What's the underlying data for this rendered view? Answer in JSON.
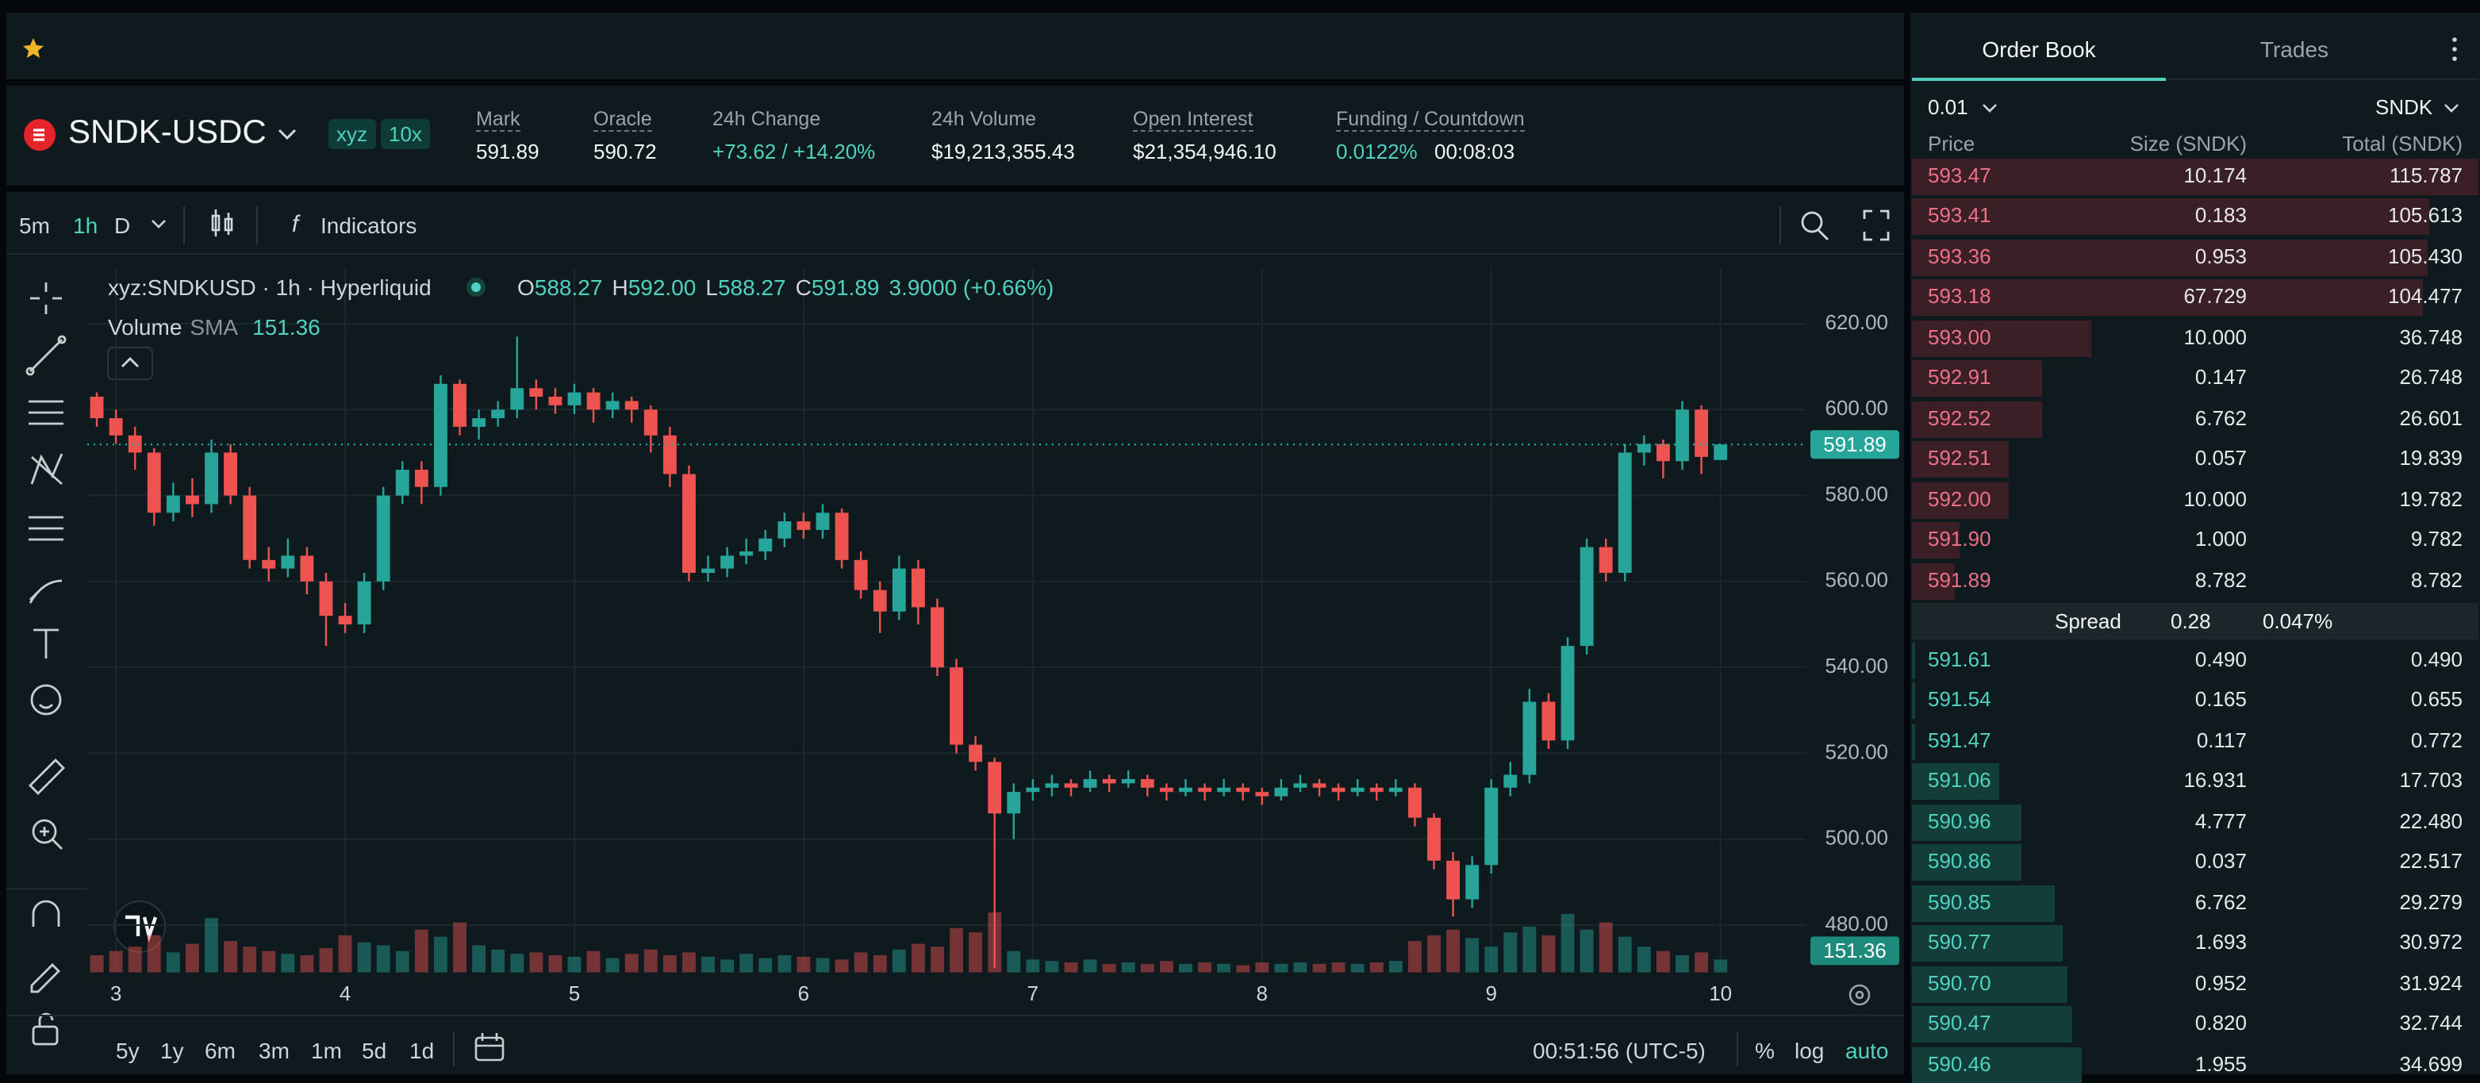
{
  "header": {
    "symbol": "SNDK-USDC",
    "badges": [
      "xyz",
      "10x"
    ],
    "stats": [
      {
        "label": "Mark",
        "value": "591.89"
      },
      {
        "label": "Oracle",
        "value": "590.72"
      },
      {
        "label": "24h Change",
        "value": "+73.62 / +14.20%"
      },
      {
        "label": "24h Volume",
        "value": "$19,213,355.43"
      },
      {
        "label": "Open Interest",
        "value": "$21,354,946.10"
      },
      {
        "label": "Funding / Countdown",
        "value": "0.0122%",
        "extra": "00:08:03"
      }
    ]
  },
  "toolbar": {
    "intervals": [
      "5m",
      "1h",
      "D"
    ],
    "indicators": "Indicators"
  },
  "range_bar": {
    "ranges": [
      "5y",
      "1y",
      "6m",
      "3m",
      "1m",
      "5d",
      "1d"
    ],
    "clock": "00:51:56 (UTC-5)",
    "options": [
      "%",
      "log",
      "auto"
    ]
  },
  "chart_data": {
    "type": "candlestick",
    "title": "xyz:SNDKUSD · 1h · Hyperliquid",
    "legend": [
      {
        "key": "O",
        "value": "588.27"
      },
      {
        "key": "H",
        "value": "592.00"
      },
      {
        "key": "L",
        "value": "588.27"
      },
      {
        "key": "C",
        "value": "591.89"
      }
    ],
    "change": "3.9000 (+0.66%)",
    "volume_label": "Volume",
    "volume_sma_label": "SMA",
    "volume_sma": 151.36,
    "last_price": 591.89,
    "up_color": "#26a69a",
    "down_color": "#ef5350",
    "grid": true,
    "xlim": [
      -3,
      177
    ],
    "xticks": [
      {
        "value": 0,
        "label": "3"
      },
      {
        "value": 24,
        "label": "4"
      },
      {
        "value": 48,
        "label": "5"
      },
      {
        "value": 72,
        "label": "6"
      },
      {
        "value": 96,
        "label": "7"
      },
      {
        "value": 120,
        "label": "8"
      },
      {
        "value": 144,
        "label": "9"
      },
      {
        "value": 168,
        "label": "10"
      }
    ],
    "ylim": [
      469,
      633
    ],
    "yticks": [
      {
        "value": 480,
        "label": "480.00"
      },
      {
        "value": 500,
        "label": "500.00"
      },
      {
        "value": 520,
        "label": "520.00"
      },
      {
        "value": 540,
        "label": "540.00"
      },
      {
        "value": 560,
        "label": "560.00"
      },
      {
        "value": 580,
        "label": "580.00"
      },
      {
        "value": 600,
        "label": "600.00"
      },
      {
        "value": 620,
        "label": "620.00"
      }
    ],
    "vlim": [
      0,
      1000
    ],
    "x": [
      -2,
      0,
      2,
      4,
      6,
      8,
      10,
      12,
      14,
      16,
      18,
      20,
      22,
      24,
      26,
      28,
      30,
      32,
      34,
      36,
      38,
      40,
      42,
      44,
      46,
      48,
      50,
      52,
      54,
      56,
      58,
      60,
      62,
      64,
      66,
      68,
      70,
      72,
      74,
      76,
      78,
      80,
      82,
      84,
      86,
      88,
      90,
      92,
      94,
      96,
      98,
      100,
      102,
      104,
      106,
      108,
      110,
      112,
      114,
      116,
      118,
      120,
      122,
      124,
      126,
      128,
      130,
      132,
      134,
      136,
      138,
      140,
      142,
      144,
      146,
      148,
      150,
      152,
      154,
      156,
      158,
      160,
      162,
      164,
      166,
      168
    ],
    "candles": [
      [
        603,
        604,
        596,
        598
      ],
      [
        598,
        600,
        592,
        594
      ],
      [
        594,
        596,
        586,
        590
      ],
      [
        590,
        591,
        573,
        576
      ],
      [
        576,
        583,
        574,
        580
      ],
      [
        580,
        584,
        575,
        578
      ],
      [
        578,
        593,
        576,
        590
      ],
      [
        590,
        592,
        578,
        580
      ],
      [
        580,
        582,
        563,
        565
      ],
      [
        565,
        568,
        560,
        563
      ],
      [
        563,
        570,
        561,
        566
      ],
      [
        566,
        568,
        557,
        560
      ],
      [
        560,
        562,
        545,
        552
      ],
      [
        552,
        555,
        548,
        550
      ],
      [
        550,
        562,
        548,
        560
      ],
      [
        560,
        582,
        558,
        580
      ],
      [
        580,
        588,
        578,
        586
      ],
      [
        586,
        588,
        578,
        582
      ],
      [
        582,
        608,
        580,
        606
      ],
      [
        606,
        607,
        594,
        596
      ],
      [
        596,
        600,
        593,
        598
      ],
      [
        598,
        602,
        596,
        600
      ],
      [
        600,
        617,
        598,
        605
      ],
      [
        605,
        607,
        600,
        603
      ],
      [
        603,
        605,
        599,
        601
      ],
      [
        601,
        606,
        599,
        604
      ],
      [
        604,
        605,
        597,
        600
      ],
      [
        600,
        604,
        598,
        602
      ],
      [
        602,
        603,
        597,
        600
      ],
      [
        600,
        601,
        590,
        594
      ],
      [
        594,
        596,
        582,
        585
      ],
      [
        585,
        587,
        560,
        562
      ],
      [
        562,
        566,
        560,
        563
      ],
      [
        563,
        568,
        561,
        566
      ],
      [
        566,
        570,
        564,
        567
      ],
      [
        567,
        572,
        565,
        570
      ],
      [
        570,
        576,
        568,
        574
      ],
      [
        574,
        576,
        570,
        572
      ],
      [
        572,
        578,
        570,
        576
      ],
      [
        576,
        577,
        563,
        565
      ],
      [
        565,
        567,
        556,
        558
      ],
      [
        558,
        560,
        548,
        553
      ],
      [
        553,
        566,
        551,
        563
      ],
      [
        563,
        565,
        550,
        554
      ],
      [
        554,
        556,
        538,
        540
      ],
      [
        540,
        542,
        520,
        522
      ],
      [
        522,
        524,
        516,
        518
      ],
      [
        518,
        519,
        470,
        506
      ],
      [
        506,
        513,
        500,
        511
      ],
      [
        511,
        514,
        509,
        512
      ],
      [
        512,
        515,
        510,
        513
      ],
      [
        513,
        514,
        510,
        512
      ],
      [
        512,
        516,
        511,
        514
      ],
      [
        514,
        515,
        511,
        513
      ],
      [
        513,
        516,
        512,
        514
      ],
      [
        514,
        515,
        510,
        512
      ],
      [
        512,
        513,
        509,
        511
      ],
      [
        511,
        514,
        510,
        512
      ],
      [
        512,
        513,
        509,
        511
      ],
      [
        511,
        514,
        510,
        512
      ],
      [
        512,
        513,
        509,
        511
      ],
      [
        511,
        512,
        508,
        510
      ],
      [
        510,
        514,
        509,
        512
      ],
      [
        512,
        515,
        511,
        513
      ],
      [
        513,
        514,
        510,
        512
      ],
      [
        512,
        513,
        509,
        511
      ],
      [
        511,
        514,
        510,
        512
      ],
      [
        512,
        513,
        509,
        511
      ],
      [
        511,
        514,
        510,
        512
      ],
      [
        512,
        513,
        503,
        505
      ],
      [
        505,
        506,
        493,
        495
      ],
      [
        495,
        497,
        482,
        486
      ],
      [
        486,
        496,
        484,
        494
      ],
      [
        494,
        514,
        492,
        512
      ],
      [
        512,
        518,
        510,
        515
      ],
      [
        515,
        535,
        513,
        532
      ],
      [
        532,
        534,
        521,
        523
      ],
      [
        523,
        547,
        521,
        545
      ],
      [
        545,
        570,
        543,
        568
      ],
      [
        568,
        570,
        560,
        562
      ],
      [
        562,
        592,
        560,
        590
      ],
      [
        590,
        594,
        587,
        592
      ],
      [
        592,
        593,
        584,
        588
      ],
      [
        588,
        602,
        586,
        600
      ],
      [
        600,
        601,
        585,
        589
      ],
      [
        588.27,
        592,
        588.27,
        591.89
      ]
    ],
    "volume": [
      120,
      150,
      180,
      260,
      140,
      200,
      380,
      220,
      180,
      150,
      130,
      120,
      170,
      260,
      210,
      190,
      150,
      300,
      250,
      350,
      190,
      160,
      130,
      140,
      120,
      110,
      150,
      100,
      130,
      160,
      120,
      140,
      110,
      90,
      130,
      100,
      120,
      110,
      100,
      90,
      140,
      120,
      160,
      200,
      180,
      310,
      280,
      420,
      150,
      90,
      80,
      70,
      90,
      60,
      70,
      60,
      80,
      60,
      70,
      60,
      50,
      70,
      60,
      70,
      60,
      70,
      60,
      70,
      80,
      220,
      260,
      300,
      240,
      180,
      280,
      320,
      260,
      410,
      300,
      350,
      250,
      180,
      150,
      120,
      140,
      90
    ]
  },
  "order_book": {
    "tabs": [
      "Order Book",
      "Trades"
    ],
    "tick_size": "0.01",
    "unit": "SNDK",
    "columns": [
      "Price",
      "Size (SNDK)",
      "Total (SNDK)"
    ],
    "asks": [
      [
        "593.47",
        "10.174",
        "115.787"
      ],
      [
        "593.41",
        "0.183",
        "105.613"
      ],
      [
        "593.36",
        "0.953",
        "105.430"
      ],
      [
        "593.18",
        "67.729",
        "104.477"
      ],
      [
        "593.00",
        "10.000",
        "36.748"
      ],
      [
        "592.91",
        "0.147",
        "26.748"
      ],
      [
        "592.52",
        "6.762",
        "26.601"
      ],
      [
        "592.51",
        "0.057",
        "19.839"
      ],
      [
        "592.00",
        "10.000",
        "19.782"
      ],
      [
        "591.90",
        "1.000",
        "9.782"
      ],
      [
        "591.89",
        "8.782",
        "8.782"
      ]
    ],
    "spread": {
      "label": "Spread",
      "value": "0.28",
      "percent": "0.047%"
    },
    "bids": [
      [
        "591.61",
        "0.490",
        "0.490"
      ],
      [
        "591.54",
        "0.165",
        "0.655"
      ],
      [
        "591.47",
        "0.117",
        "0.772"
      ],
      [
        "591.06",
        "16.931",
        "17.703"
      ],
      [
        "590.96",
        "4.777",
        "22.480"
      ],
      [
        "590.86",
        "0.037",
        "22.517"
      ],
      [
        "590.85",
        "6.762",
        "29.279"
      ],
      [
        "590.77",
        "1.693",
        "30.972"
      ],
      [
        "590.70",
        "0.952",
        "31.924"
      ],
      [
        "590.47",
        "0.820",
        "32.744"
      ],
      [
        "590.46",
        "1.955",
        "34.699"
      ]
    ]
  }
}
